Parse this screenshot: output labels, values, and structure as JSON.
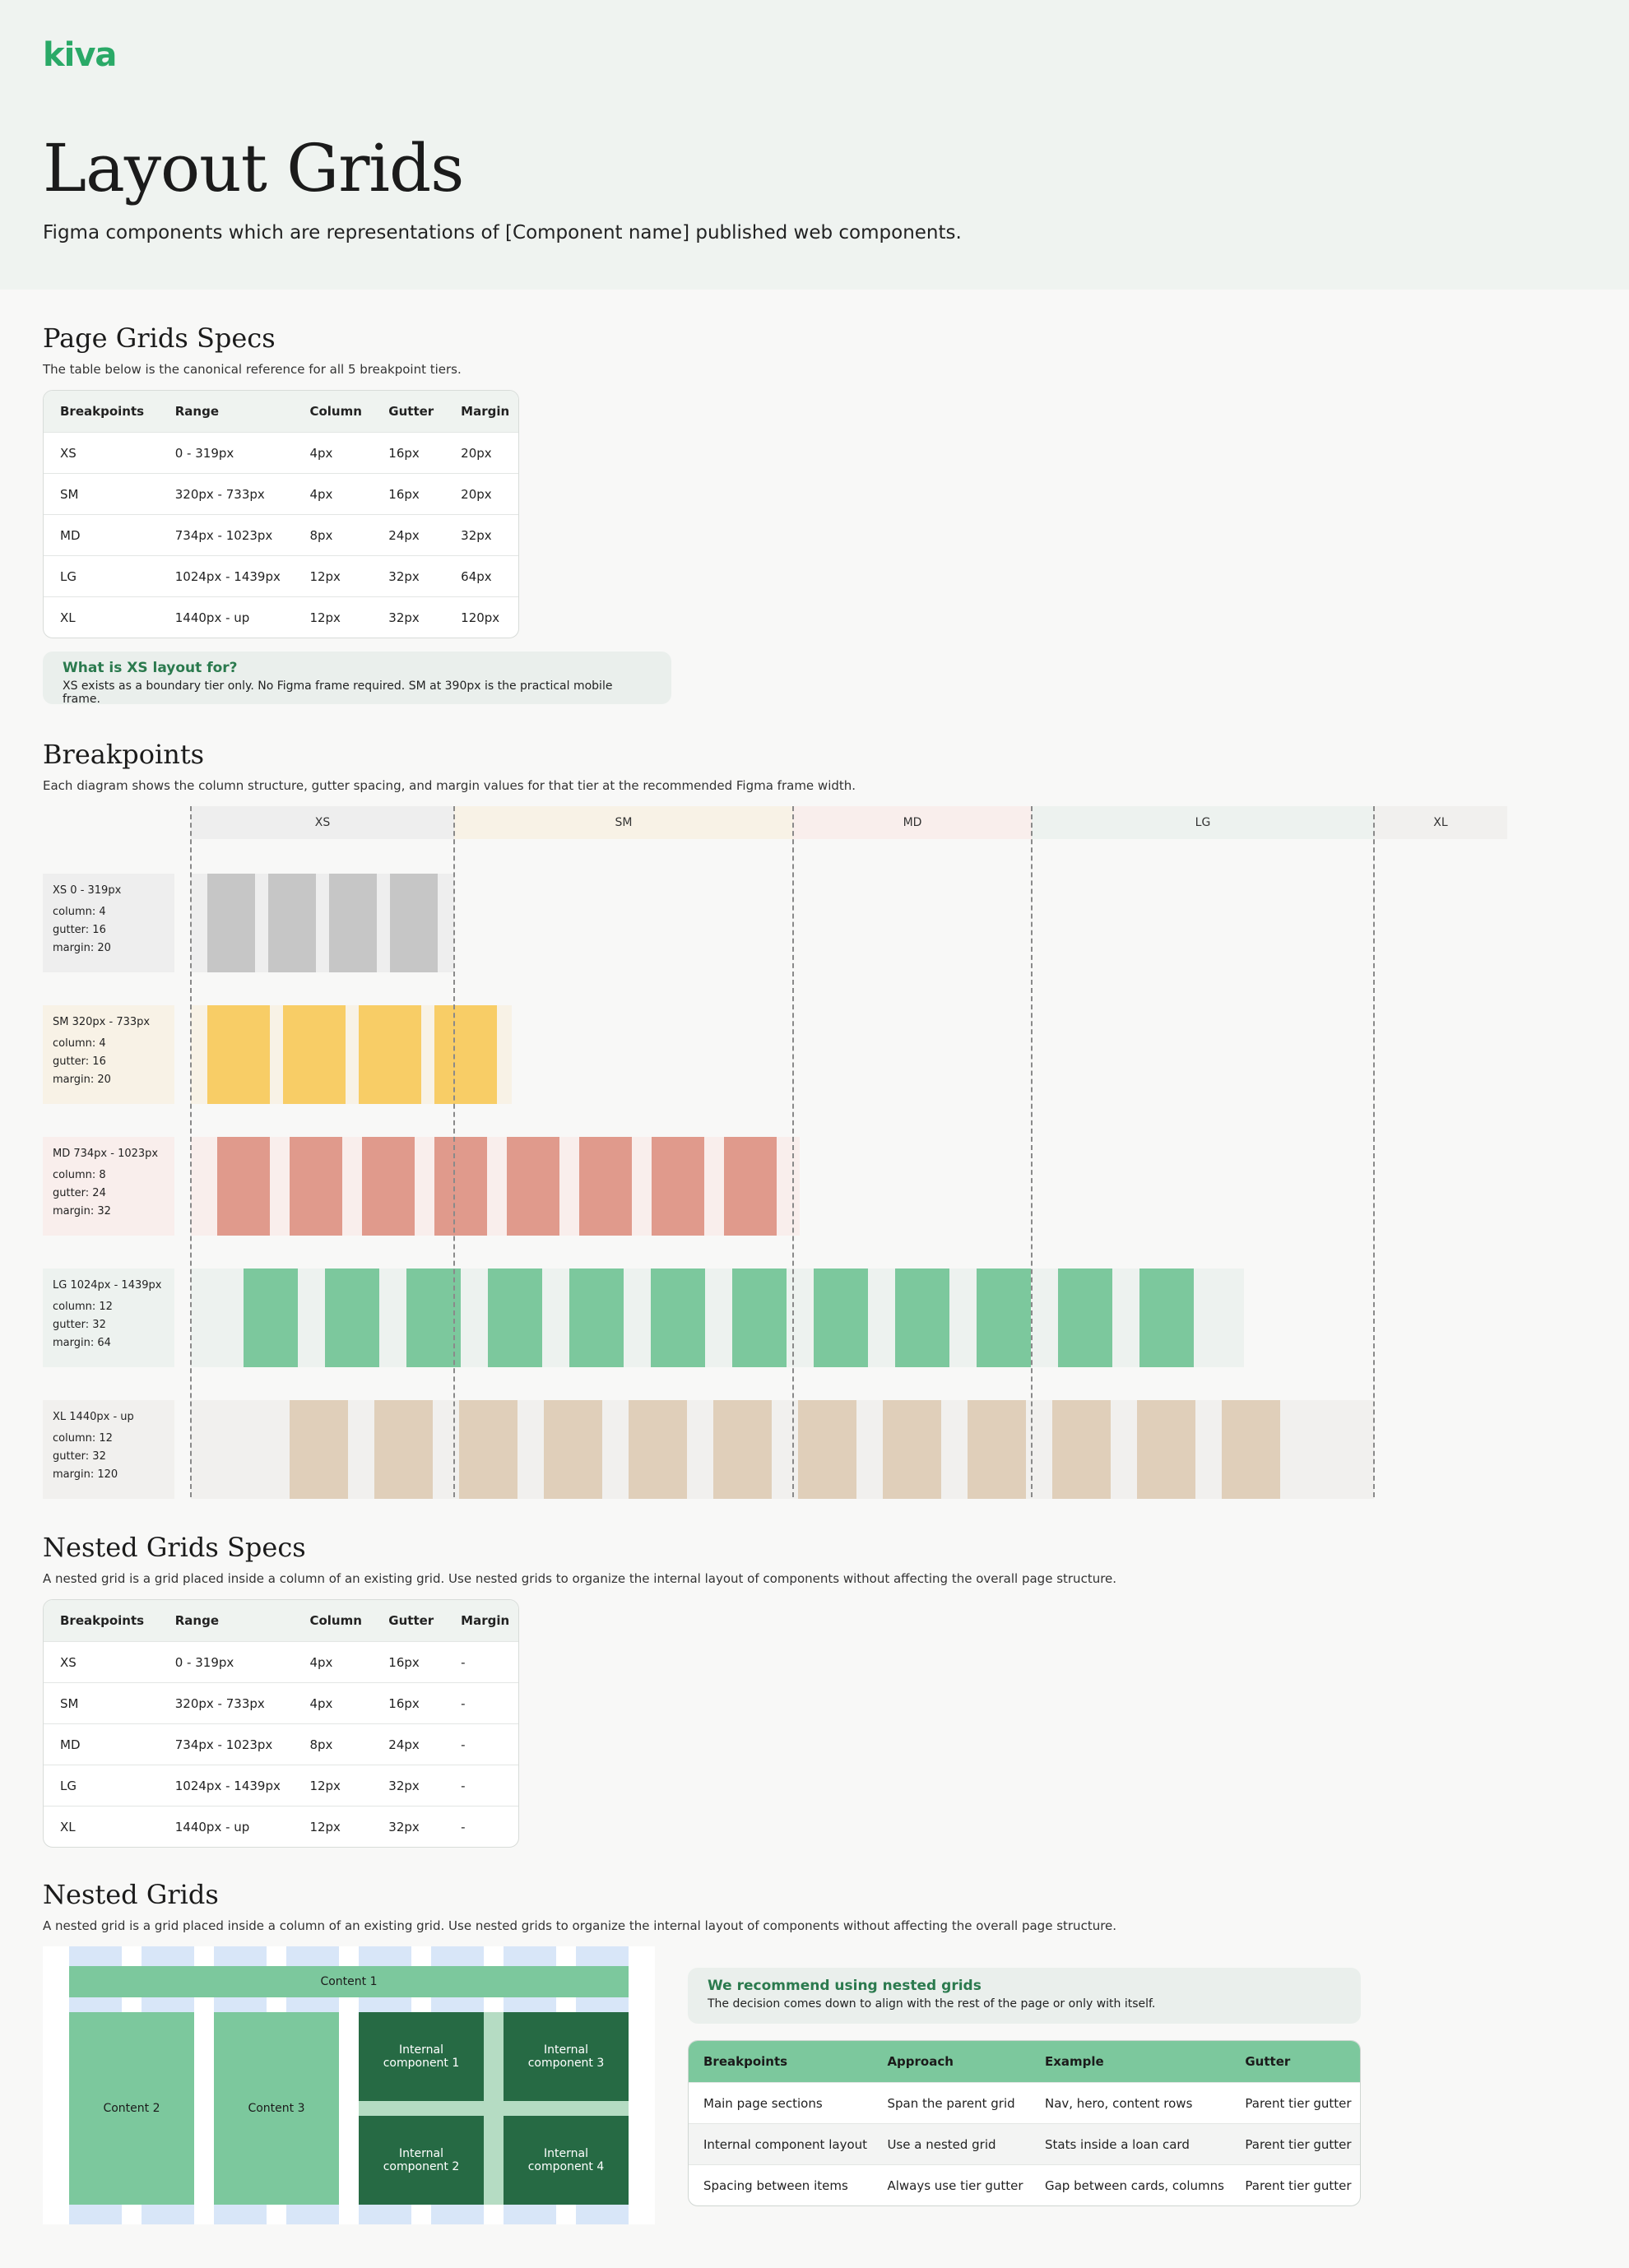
{
  "brand": {
    "logo": "kiva",
    "accent": "#2aa967"
  },
  "hero": {
    "title": "Layout Grids",
    "subtitle": "Figma components which are representations of [Component name] published web components."
  },
  "page_grids": {
    "title": "Page Grids Specs",
    "description": "The table below is the canonical reference for all 5 breakpoint tiers.",
    "headers": [
      "Breakpoints",
      "Range",
      "Column",
      "Gutter",
      "Margin"
    ],
    "rows": [
      [
        "XS",
        "0 - 319px",
        "4px",
        "16px",
        "20px"
      ],
      [
        "SM",
        "320px - 733px",
        "4px",
        "16px",
        "20px"
      ],
      [
        "MD",
        "734px - 1023px",
        "8px",
        "24px",
        "32px"
      ],
      [
        "LG",
        "1024px - 1439px",
        "12px",
        "32px",
        "64px"
      ],
      [
        "XL",
        "1440px - up",
        "12px",
        "32px",
        "120px"
      ]
    ]
  },
  "xs_note": {
    "title": "What is XS layout for?",
    "body": "XS exists as a boundary tier only. No Figma frame required. SM at 390px is the practical mobile frame."
  },
  "breakpoints": {
    "title": "Breakpoints",
    "description": "Each diagram shows the column structure, gutter spacing, and margin values for that tier at the recommended Figma frame width.",
    "bands": [
      "XS",
      "SM",
      "MD",
      "LG",
      "XL"
    ],
    "tiers": [
      {
        "name": "XS 0 - 319px",
        "column": "column: 4",
        "gutter": "gutter: 16",
        "margin": "margin: 20",
        "color": "#c6c6c6",
        "bg": "#eeeeee"
      },
      {
        "name": "SM 320px - 733px",
        "column": "column: 4",
        "gutter": "gutter: 16",
        "margin": "margin: 20",
        "color": "#f8cd66",
        "bg": "#f8f2e6"
      },
      {
        "name": "MD 734px - 1023px",
        "column": "column: 8",
        "gutter": "gutter: 24",
        "margin": "margin: 32",
        "color": "#e09a8c",
        "bg": "#f9eeec"
      },
      {
        "name": "LG 1024px - 1439px",
        "column": "column: 12",
        "gutter": "gutter: 32",
        "margin": "margin: 64",
        "color": "#7cc89d",
        "bg": "#edf2ef"
      },
      {
        "name": "XL 1440px - up",
        "column": "column: 12",
        "gutter": "gutter: 32",
        "margin": "margin: 120",
        "color": "#e0cfba",
        "bg": "#f1f0ee"
      }
    ]
  },
  "nested_specs": {
    "title": "Nested Grids Specs",
    "description": "A nested grid is a grid placed inside a column of an existing grid. Use nested grids to organize the internal layout of components without affecting the overall page structure.",
    "headers": [
      "Breakpoints",
      "Range",
      "Column",
      "Gutter",
      "Margin"
    ],
    "rows": [
      [
        "XS",
        "0 - 319px",
        "4px",
        "16px",
        "-"
      ],
      [
        "SM",
        "320px - 733px",
        "4px",
        "16px",
        "-"
      ],
      [
        "MD",
        "734px - 1023px",
        "8px",
        "24px",
        "-"
      ],
      [
        "LG",
        "1024px - 1439px",
        "12px",
        "32px",
        "-"
      ],
      [
        "XL",
        "1440px - up",
        "12px",
        "32px",
        "-"
      ]
    ]
  },
  "nested_grids": {
    "title": "Nested Grids",
    "description": "A nested grid is a grid placed inside a column of an existing grid. Use nested grids to organize the internal layout of components without affecting the overall page structure.",
    "content1": "Content 1",
    "content2": "Content 2",
    "content3": "Content 3",
    "internal1": "Internal component 1",
    "internal2": "Internal component 2",
    "internal3": "Internal component 3",
    "internal4": "Internal component 4"
  },
  "recommend": {
    "title": "We recommend using nested grids",
    "body": "The decision comes down to align with the rest of the page or only with itself."
  },
  "approach_table": {
    "headers": [
      "Breakpoints",
      "Approach",
      "Example",
      "Gutter"
    ],
    "rows": [
      [
        "Main page sections",
        "Span the parent grid",
        "Nav, hero, content rows",
        "Parent tier gutter"
      ],
      [
        "Internal component layout",
        "Use a nested grid",
        "Stats inside a loan card",
        "Parent tier gutter"
      ],
      [
        "Spacing between items",
        "Always use tier gutter",
        "Gap between cards, columns",
        "Parent tier gutter"
      ]
    ]
  }
}
